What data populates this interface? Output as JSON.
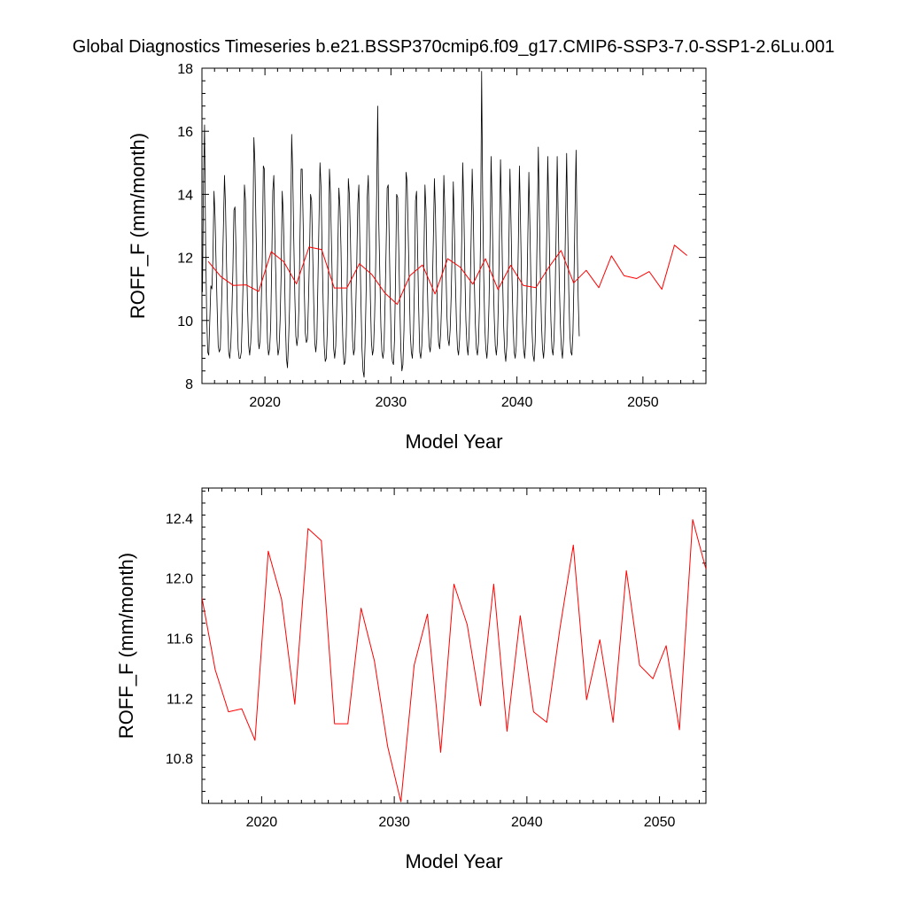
{
  "title": "Global Diagnostics Timeseries b.e21.BSSP370cmip6.f09_g17.CMIP6-SSP3-7.0-SSP1-2.6Lu.001",
  "chart_data": [
    {
      "type": "line",
      "xlabel": "Model Year",
      "ylabel": "ROFF_F (mm/month)",
      "xlim": [
        2015,
        2055
      ],
      "ylim": [
        8,
        18
      ],
      "xticks": [
        2020,
        2030,
        2040,
        2050
      ],
      "yticks": [
        8,
        10,
        12,
        14,
        16,
        18
      ],
      "series": [
        {
          "color": "#000000",
          "x_start": 2015.04,
          "x_step": 0.0833,
          "values": [
            10.9,
            14.3,
            16.2,
            12.5,
            10.2,
            9.0,
            8.9,
            10.0,
            11.1,
            11.0,
            12.0,
            14.1,
            13.3,
            11.8,
            10.4,
            9.2,
            9.0,
            9.1,
            10.3,
            11.5,
            13.0,
            14.6,
            13.6,
            11.7,
            10.2,
            9.0,
            8.8,
            9.2,
            10.2,
            11.6,
            13.5,
            13.6,
            12.2,
            10.3,
            9.1,
            8.8,
            8.8,
            9.0,
            10.2,
            11.6,
            14.3,
            13.8,
            11.9,
            10.4,
            9.2,
            8.9,
            9.3,
            10.1,
            12.6,
            15.8,
            15.0,
            13.0,
            11.2,
            9.4,
            9.1,
            9.4,
            10.5,
            12.0,
            14.9,
            14.8,
            12.3,
            10.6,
            9.3,
            8.9,
            9.1,
            9.8,
            11.8,
            14.1,
            14.6,
            12.6,
            11.3,
            9.4,
            8.9,
            9.1,
            10.0,
            11.5,
            14.1,
            13.4,
            11.9,
            10.0,
            8.8,
            8.5,
            9.3,
            10.4,
            12.6,
            15.9,
            14.7,
            12.6,
            10.8,
            9.5,
            9.2,
            9.5,
            10.5,
            12.8,
            14.8,
            14.8,
            13.0,
            11.0,
            9.6,
            9.3,
            9.4,
            10.6,
            12.1,
            14.0,
            13.8,
            12.2,
            10.6,
            9.3,
            9.0,
            9.4,
            11.2,
            13.1,
            15.0,
            14.2,
            12.2,
            10.6,
            9.2,
            8.7,
            8.8,
            9.7,
            11.4,
            14.8,
            14.0,
            12.3,
            10.7,
            9.1,
            8.8,
            9.2,
            10.5,
            12.3,
            14.2,
            13.6,
            12.3,
            10.3,
            9.1,
            8.6,
            8.7,
            9.5,
            11.4,
            14.5,
            14.0,
            12.6,
            10.8,
            9.4,
            8.9,
            9.1,
            10.3,
            11.8,
            13.7,
            14.3,
            12.4,
            10.6,
            9.1,
            8.4,
            8.2,
            9.3,
            11.0,
            13.9,
            14.6,
            12.7,
            10.7,
            9.3,
            8.9,
            9.1,
            10.1,
            11.7,
            14.0,
            16.8,
            13.1,
            11.5,
            9.8,
            9.0,
            8.8,
            9.1,
            10.6,
            12.3,
            14.2,
            14.3,
            12.5,
            10.6,
            9.1,
            8.7,
            8.6,
            9.4,
            11.4,
            14.0,
            13.9,
            12.3,
            10.6,
            9.1,
            8.4,
            8.6,
            9.7,
            12.0,
            14.7,
            14.4,
            12.8,
            11.2,
            9.6,
            9.0,
            8.8,
            9.5,
            11.1,
            13.8,
            14.1,
            12.2,
            10.4,
            9.0,
            8.8,
            9.2,
            10.3,
            12.0,
            14.3,
            13.5,
            11.5,
            10.1,
            9.2,
            9.0,
            9.5,
            10.9,
            12.6,
            14.5,
            13.4,
            11.5,
            10.2,
            9.3,
            9.1,
            9.6,
            10.7,
            12.5,
            14.6,
            13.4,
            11.6,
            10.1,
            9.4,
            9.2,
            9.7,
            10.8,
            12.4,
            14.4,
            13.0,
            11.3,
            9.9,
            9.1,
            8.9,
            9.4,
            10.6,
            12.5,
            15.0,
            13.6,
            11.6,
            10.0,
            9.2,
            8.9,
            9.5,
            10.8,
            12.6,
            14.8,
            13.5,
            11.3,
            9.9,
            9.1,
            8.9,
            9.3,
            10.5,
            12.7,
            17.9,
            13.9,
            11.4,
            9.8,
            9.1,
            8.8,
            9.3,
            10.5,
            12.4,
            15.2,
            13.6,
            11.5,
            10.1,
            9.2,
            8.9,
            9.3,
            10.6,
            12.7,
            15.1,
            13.4,
            11.3,
            9.8,
            9.0,
            8.7,
            9.2,
            10.4,
            12.5,
            14.8,
            13.1,
            11.2,
            9.8,
            9.0,
            8.8,
            9.2,
            10.5,
            12.5,
            14.9,
            13.2,
            11.3,
            9.9,
            9.1,
            8.8,
            9.3,
            10.6,
            12.6,
            14.7,
            13.0,
            11.1,
            9.7,
            8.9,
            8.7,
            9.3,
            10.8,
            13.0,
            15.5,
            13.5,
            11.4,
            9.9,
            9.1,
            8.8,
            9.3,
            10.6,
            12.7,
            15.2,
            13.5,
            11.5,
            10.0,
            9.1,
            8.9,
            9.4,
            10.7,
            12.8,
            15.2,
            13.2,
            11.2,
            9.9,
            9.1,
            8.8,
            9.4,
            11.0,
            13.2,
            15.3,
            13.0,
            11.0,
            9.6,
            9.0,
            8.9,
            9.6,
            11.3,
            13.5,
            15.4,
            12.6,
            10.7,
            9.5
          ]
        },
        {
          "color": "#ff0000",
          "x": [
            2015.5,
            2016.5,
            2017.5,
            2018.5,
            2019.5,
            2020.5,
            2021.5,
            2022.5,
            2023.5,
            2024.5,
            2025.5,
            2026.5,
            2027.5,
            2028.5,
            2029.5,
            2030.5,
            2031.5,
            2032.5,
            2033.5,
            2034.5,
            2035.5,
            2036.5,
            2037.5,
            2038.5,
            2039.5,
            2040.5,
            2041.5,
            2042.5,
            2043.5,
            2044.5,
            2045.5,
            2046.5,
            2047.5,
            2048.5,
            2049.5,
            2050.5,
            2051.5,
            2052.5,
            2053.5
          ],
          "values": [
            11.87,
            11.39,
            11.11,
            11.13,
            10.92,
            12.18,
            11.86,
            11.16,
            12.33,
            12.25,
            11.03,
            11.03,
            11.8,
            11.45,
            10.88,
            10.51,
            11.42,
            11.76,
            10.84,
            11.96,
            11.69,
            11.15,
            11.96,
            10.98,
            11.75,
            11.11,
            11.04,
            11.67,
            12.22,
            11.19,
            11.59,
            11.04,
            12.05,
            11.42,
            11.33,
            11.55,
            10.99,
            12.39,
            12.06
          ]
        }
      ]
    },
    {
      "type": "line",
      "xlabel": "Model Year",
      "ylabel": "ROFF_F (mm/month)",
      "xlim": [
        2015.5,
        2053.5
      ],
      "ylim": [
        10.5,
        12.6
      ],
      "xticks": [
        2020,
        2030,
        2040,
        2050
      ],
      "yticks": [
        10.8,
        11.2,
        11.6,
        12.0,
        12.4
      ],
      "ytick_labels": [
        "10.8",
        "11.2",
        "11.6",
        "12.0",
        "12.4"
      ],
      "series": [
        {
          "color": "#ff0000",
          "x": [
            2015.5,
            2016.5,
            2017.5,
            2018.5,
            2019.5,
            2020.5,
            2021.5,
            2022.5,
            2023.5,
            2024.5,
            2025.5,
            2026.5,
            2027.5,
            2028.5,
            2029.5,
            2030.5,
            2031.5,
            2032.5,
            2033.5,
            2034.5,
            2035.5,
            2036.5,
            2037.5,
            2038.5,
            2039.5,
            2040.5,
            2041.5,
            2042.5,
            2043.5,
            2044.5,
            2045.5,
            2046.5,
            2047.5,
            2048.5,
            2049.5,
            2050.5,
            2051.5,
            2052.5,
            2053.5
          ],
          "values": [
            11.87,
            11.39,
            11.11,
            11.13,
            10.92,
            12.18,
            11.86,
            11.16,
            12.33,
            12.25,
            11.03,
            11.03,
            11.8,
            11.45,
            10.88,
            10.51,
            11.42,
            11.76,
            10.84,
            11.96,
            11.69,
            11.15,
            11.96,
            10.98,
            11.75,
            11.11,
            11.04,
            11.67,
            12.22,
            11.19,
            11.59,
            11.04,
            12.05,
            11.42,
            11.33,
            11.55,
            10.99,
            12.39,
            12.06
          ]
        }
      ]
    }
  ]
}
